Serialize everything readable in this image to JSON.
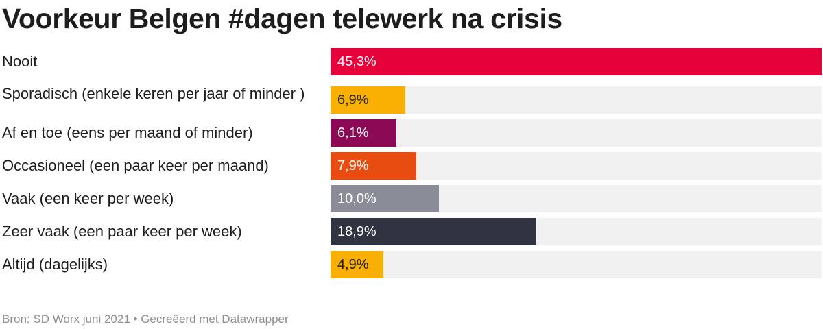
{
  "title": "Voorkeur Belgen #dagen telewerk na crisis",
  "footer": {
    "source": "Bron: SD Worx juni 2021",
    "separator": "•",
    "credit": "Gecreëerd met Datawrapper"
  },
  "chart_data": {
    "type": "bar",
    "orientation": "horizontal",
    "title": "Voorkeur Belgen #dagen telewerk na crisis",
    "xlim": [
      0,
      45.3
    ],
    "categories": [
      "Nooit",
      "Sporadisch (enkele keren per jaar of minder )",
      "Af en toe (eens per maand of minder)",
      "Occasioneel (een paar keer per maand)",
      "Vaak (een keer per week)",
      "Zeer vaak (een paar keer per week)",
      "Altijd (dagelijks)"
    ],
    "values": [
      45.3,
      6.9,
      6.1,
      7.9,
      10.0,
      18.9,
      4.9
    ],
    "value_labels": [
      "45,3%",
      "6,9%",
      "6,1%",
      "7,9%",
      "10,0%",
      "18,9%",
      "4,9%"
    ],
    "colors": [
      "#e60039",
      "#f9b002",
      "#8c0a55",
      "#e84c11",
      "#8a8d97",
      "#2f3440",
      "#f9b002"
    ],
    "label_colors": [
      "#ffffff",
      "#1d1d1d",
      "#ffffff",
      "#ffffff",
      "#ffffff",
      "#ffffff",
      "#1d1d1d"
    ]
  }
}
